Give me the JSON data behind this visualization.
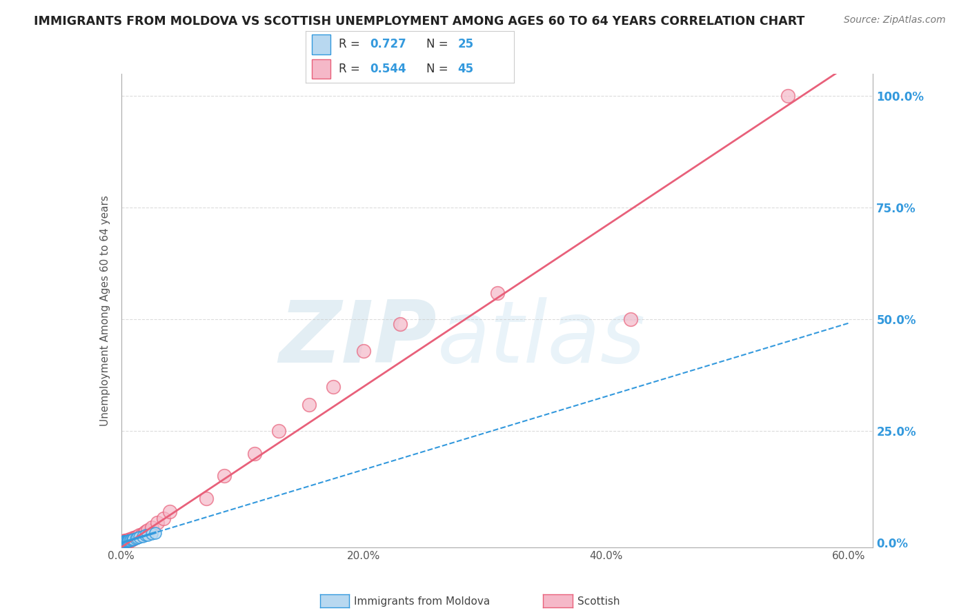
{
  "title": "IMMIGRANTS FROM MOLDOVA VS SCOTTISH UNEMPLOYMENT AMONG AGES 60 TO 64 YEARS CORRELATION CHART",
  "source": "Source: ZipAtlas.com",
  "ylabel": "Unemployment Among Ages 60 to 64 years",
  "legend1_color": "#b8d8f0",
  "legend2_color": "#f5b8c8",
  "scatter1_color": "#b8d8f0",
  "scatter2_color": "#f5b8c8",
  "line1_color": "#3399dd",
  "line2_color": "#e8607a",
  "watermark": "ZIPatlas",
  "watermark_color": "#cce5f5",
  "background_color": "#ffffff",
  "grid_color": "#cccccc",
  "title_color": "#222222",
  "axis_color": "#aaaaaa",
  "blue_label": "Immigrants from Moldova",
  "pink_label": "Scottish",
  "r1": "0.727",
  "n1": "25",
  "r2": "0.544",
  "n2": "45"
}
